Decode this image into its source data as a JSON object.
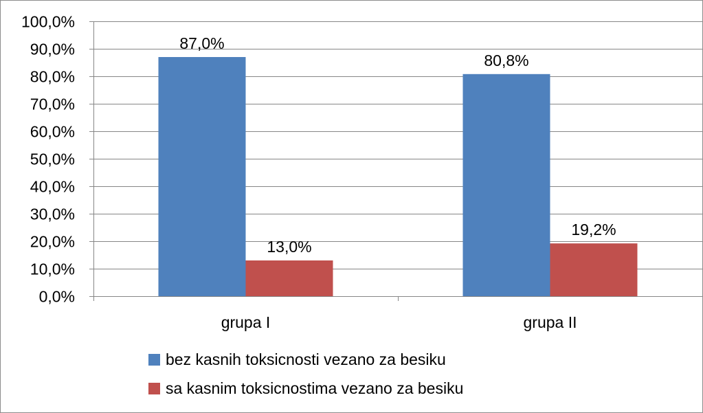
{
  "chart_data": {
    "type": "bar",
    "categories": [
      "grupa I",
      "grupa II"
    ],
    "series": [
      {
        "name": "bez kasnih toksicnosti vezano za besiku",
        "values": [
          87.0,
          80.8
        ],
        "labels": [
          "87,0%",
          "80,8%"
        ],
        "color": "#4F81BD"
      },
      {
        "name": "sa kasnim toksicnostima vezano za besiku",
        "values": [
          13.0,
          19.2
        ],
        "labels": [
          "13,0%",
          "19,2%"
        ],
        "color": "#C0504D"
      }
    ],
    "ylim": [
      0,
      100
    ],
    "yticks": [
      0,
      10,
      20,
      30,
      40,
      50,
      60,
      70,
      80,
      90,
      100
    ],
    "ytick_labels": [
      "0,0%",
      "10,0%",
      "20,0%",
      "30,0%",
      "40,0%",
      "50,0%",
      "60,0%",
      "70,0%",
      "80,0%",
      "90,0%",
      "100,0%"
    ],
    "grid": true,
    "gridline_color": "#868686",
    "legend_position": "bottom",
    "title": "",
    "xlabel": "",
    "ylabel": ""
  }
}
